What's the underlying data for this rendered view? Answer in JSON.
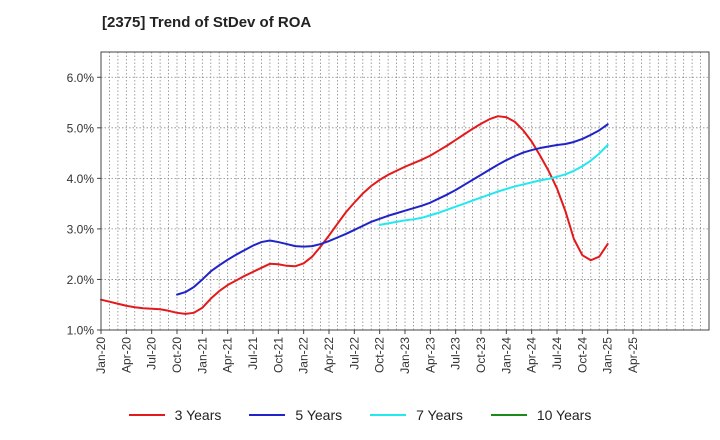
{
  "chart_data": {
    "type": "line",
    "title": "[2375]  Trend of StDev of ROA",
    "xlabel": "",
    "ylabel": "",
    "ylim": [
      1.0,
      6.5
    ],
    "yticks": [
      1.0,
      2.0,
      3.0,
      4.0,
      5.0,
      6.0
    ],
    "ytick_labels": [
      "1.0%",
      "2.0%",
      "3.0%",
      "4.0%",
      "5.0%",
      "6.0%"
    ],
    "x_categories": [
      "Jan-20",
      "Feb-20",
      "Mar-20",
      "Apr-20",
      "May-20",
      "Jun-20",
      "Jul-20",
      "Aug-20",
      "Sep-20",
      "Oct-20",
      "Nov-20",
      "Dec-20",
      "Jan-21",
      "Feb-21",
      "Mar-21",
      "Apr-21",
      "May-21",
      "Jun-21",
      "Jul-21",
      "Aug-21",
      "Sep-21",
      "Oct-21",
      "Nov-21",
      "Dec-21",
      "Jan-22",
      "Feb-22",
      "Mar-22",
      "Apr-22",
      "May-22",
      "Jun-22",
      "Jul-22",
      "Aug-22",
      "Sep-22",
      "Oct-22",
      "Nov-22",
      "Dec-22",
      "Jan-23",
      "Feb-23",
      "Mar-23",
      "Apr-23",
      "May-23",
      "Jun-23",
      "Jul-23",
      "Aug-23",
      "Sep-23",
      "Oct-23",
      "Nov-23",
      "Dec-23",
      "Jan-24",
      "Feb-24",
      "Mar-24",
      "Apr-24",
      "May-24",
      "Jun-24",
      "Jul-24",
      "Aug-24",
      "Sep-24",
      "Oct-24",
      "Nov-24",
      "Dec-24",
      "Jan-25",
      "Feb-25",
      "Mar-25",
      "Apr-25",
      "May-25",
      "Jun-25",
      "Jul-25",
      "Aug-25",
      "Sep-25",
      "Oct-25",
      "Nov-25",
      "Dec-25",
      "Jan-26"
    ],
    "xtick_labels": [
      "Jan-20",
      "Apr-20",
      "Jul-20",
      "Oct-20",
      "Jan-21",
      "Apr-21",
      "Jul-21",
      "Oct-21",
      "Jan-22",
      "Apr-22",
      "Jul-22",
      "Oct-22",
      "Jan-23",
      "Apr-23",
      "Jul-23",
      "Oct-23",
      "Jan-24",
      "Apr-24",
      "Jul-24",
      "Oct-24",
      "Jan-25",
      "Apr-25"
    ],
    "grid": true,
    "legend_position": "bottom",
    "series": [
      {
        "name": "3 Years",
        "color": "#e31a1c",
        "x": [
          "Jan-20",
          "Feb-20",
          "Mar-20",
          "Apr-20",
          "May-20",
          "Jun-20",
          "Jul-20",
          "Aug-20",
          "Sep-20",
          "Oct-20",
          "Nov-20",
          "Dec-20",
          "Jan-21",
          "Feb-21",
          "Mar-21",
          "Apr-21",
          "May-21",
          "Jun-21",
          "Jul-21",
          "Aug-21",
          "Sep-21",
          "Oct-21",
          "Nov-21",
          "Dec-21",
          "Jan-22",
          "Feb-22",
          "Mar-22",
          "Apr-22",
          "May-22",
          "Jun-22",
          "Jul-22",
          "Aug-22",
          "Sep-22",
          "Oct-22",
          "Nov-22",
          "Dec-22",
          "Jan-23",
          "Feb-23",
          "Mar-23",
          "Apr-23",
          "May-23",
          "Jun-23",
          "Jul-23",
          "Aug-23",
          "Sep-23",
          "Oct-23",
          "Nov-23",
          "Dec-23",
          "Jan-24",
          "Feb-24",
          "Mar-24",
          "Apr-24",
          "May-24",
          "Jun-24",
          "Jul-24",
          "Aug-24",
          "Sep-24",
          "Oct-24",
          "Nov-24",
          "Dec-24",
          "Jan-25"
        ],
        "values": [
          1.6,
          1.56,
          1.52,
          1.48,
          1.45,
          1.43,
          1.42,
          1.41,
          1.38,
          1.34,
          1.32,
          1.34,
          1.44,
          1.62,
          1.77,
          1.89,
          1.98,
          2.07,
          2.15,
          2.23,
          2.31,
          2.3,
          2.27,
          2.26,
          2.32,
          2.45,
          2.65,
          2.87,
          3.1,
          3.33,
          3.52,
          3.7,
          3.85,
          3.97,
          4.07,
          4.15,
          4.23,
          4.3,
          4.37,
          4.45,
          4.55,
          4.65,
          4.76,
          4.87,
          4.98,
          5.08,
          5.17,
          5.23,
          5.21,
          5.12,
          4.95,
          4.73,
          4.45,
          4.15,
          3.8,
          3.35,
          2.8,
          2.48,
          2.38,
          2.45,
          2.7
        ]
      },
      {
        "name": "5 Years",
        "color": "#1f23c8",
        "x": [
          "Oct-20",
          "Nov-20",
          "Dec-20",
          "Jan-21",
          "Feb-21",
          "Mar-21",
          "Apr-21",
          "May-21",
          "Jun-21",
          "Jul-21",
          "Aug-21",
          "Sep-21",
          "Oct-21",
          "Nov-21",
          "Dec-21",
          "Jan-22",
          "Feb-22",
          "Mar-22",
          "Apr-22",
          "May-22",
          "Jun-22",
          "Jul-22",
          "Aug-22",
          "Sep-22",
          "Oct-22",
          "Nov-22",
          "Dec-22",
          "Jan-23",
          "Feb-23",
          "Mar-23",
          "Apr-23",
          "May-23",
          "Jun-23",
          "Jul-23",
          "Aug-23",
          "Sep-23",
          "Oct-23",
          "Nov-23",
          "Dec-23",
          "Jan-24",
          "Feb-24",
          "Mar-24",
          "Apr-24",
          "May-24",
          "Jun-24",
          "Jul-24",
          "Aug-24",
          "Sep-24",
          "Oct-24",
          "Nov-24",
          "Dec-24",
          "Jan-25"
        ],
        "values": [
          1.7,
          1.75,
          1.85,
          2.0,
          2.16,
          2.28,
          2.39,
          2.49,
          2.58,
          2.67,
          2.74,
          2.77,
          2.74,
          2.7,
          2.66,
          2.65,
          2.66,
          2.7,
          2.76,
          2.83,
          2.9,
          2.98,
          3.06,
          3.14,
          3.2,
          3.26,
          3.31,
          3.36,
          3.41,
          3.46,
          3.52,
          3.6,
          3.68,
          3.77,
          3.87,
          3.97,
          4.07,
          4.17,
          4.27,
          4.36,
          4.44,
          4.51,
          4.56,
          4.6,
          4.63,
          4.66,
          4.68,
          4.72,
          4.78,
          4.86,
          4.95,
          5.07
        ]
      },
      {
        "name": "7 Years",
        "color": "#22e8f0",
        "x": [
          "Oct-22",
          "Nov-22",
          "Dec-22",
          "Jan-23",
          "Feb-23",
          "Mar-23",
          "Apr-23",
          "May-23",
          "Jun-23",
          "Jul-23",
          "Aug-23",
          "Sep-23",
          "Oct-23",
          "Nov-23",
          "Dec-23",
          "Jan-24",
          "Feb-24",
          "Mar-24",
          "Apr-24",
          "May-24",
          "Jun-24",
          "Jul-24",
          "Aug-24",
          "Sep-24",
          "Oct-24",
          "Nov-24",
          "Dec-24",
          "Jan-25"
        ],
        "values": [
          3.08,
          3.11,
          3.14,
          3.17,
          3.19,
          3.22,
          3.27,
          3.32,
          3.38,
          3.44,
          3.5,
          3.56,
          3.62,
          3.68,
          3.74,
          3.79,
          3.84,
          3.88,
          3.92,
          3.96,
          3.99,
          4.03,
          4.08,
          4.15,
          4.24,
          4.35,
          4.49,
          4.66
        ]
      },
      {
        "name": "10 Years",
        "color": "#1a8a1a",
        "x": [],
        "values": []
      }
    ]
  }
}
